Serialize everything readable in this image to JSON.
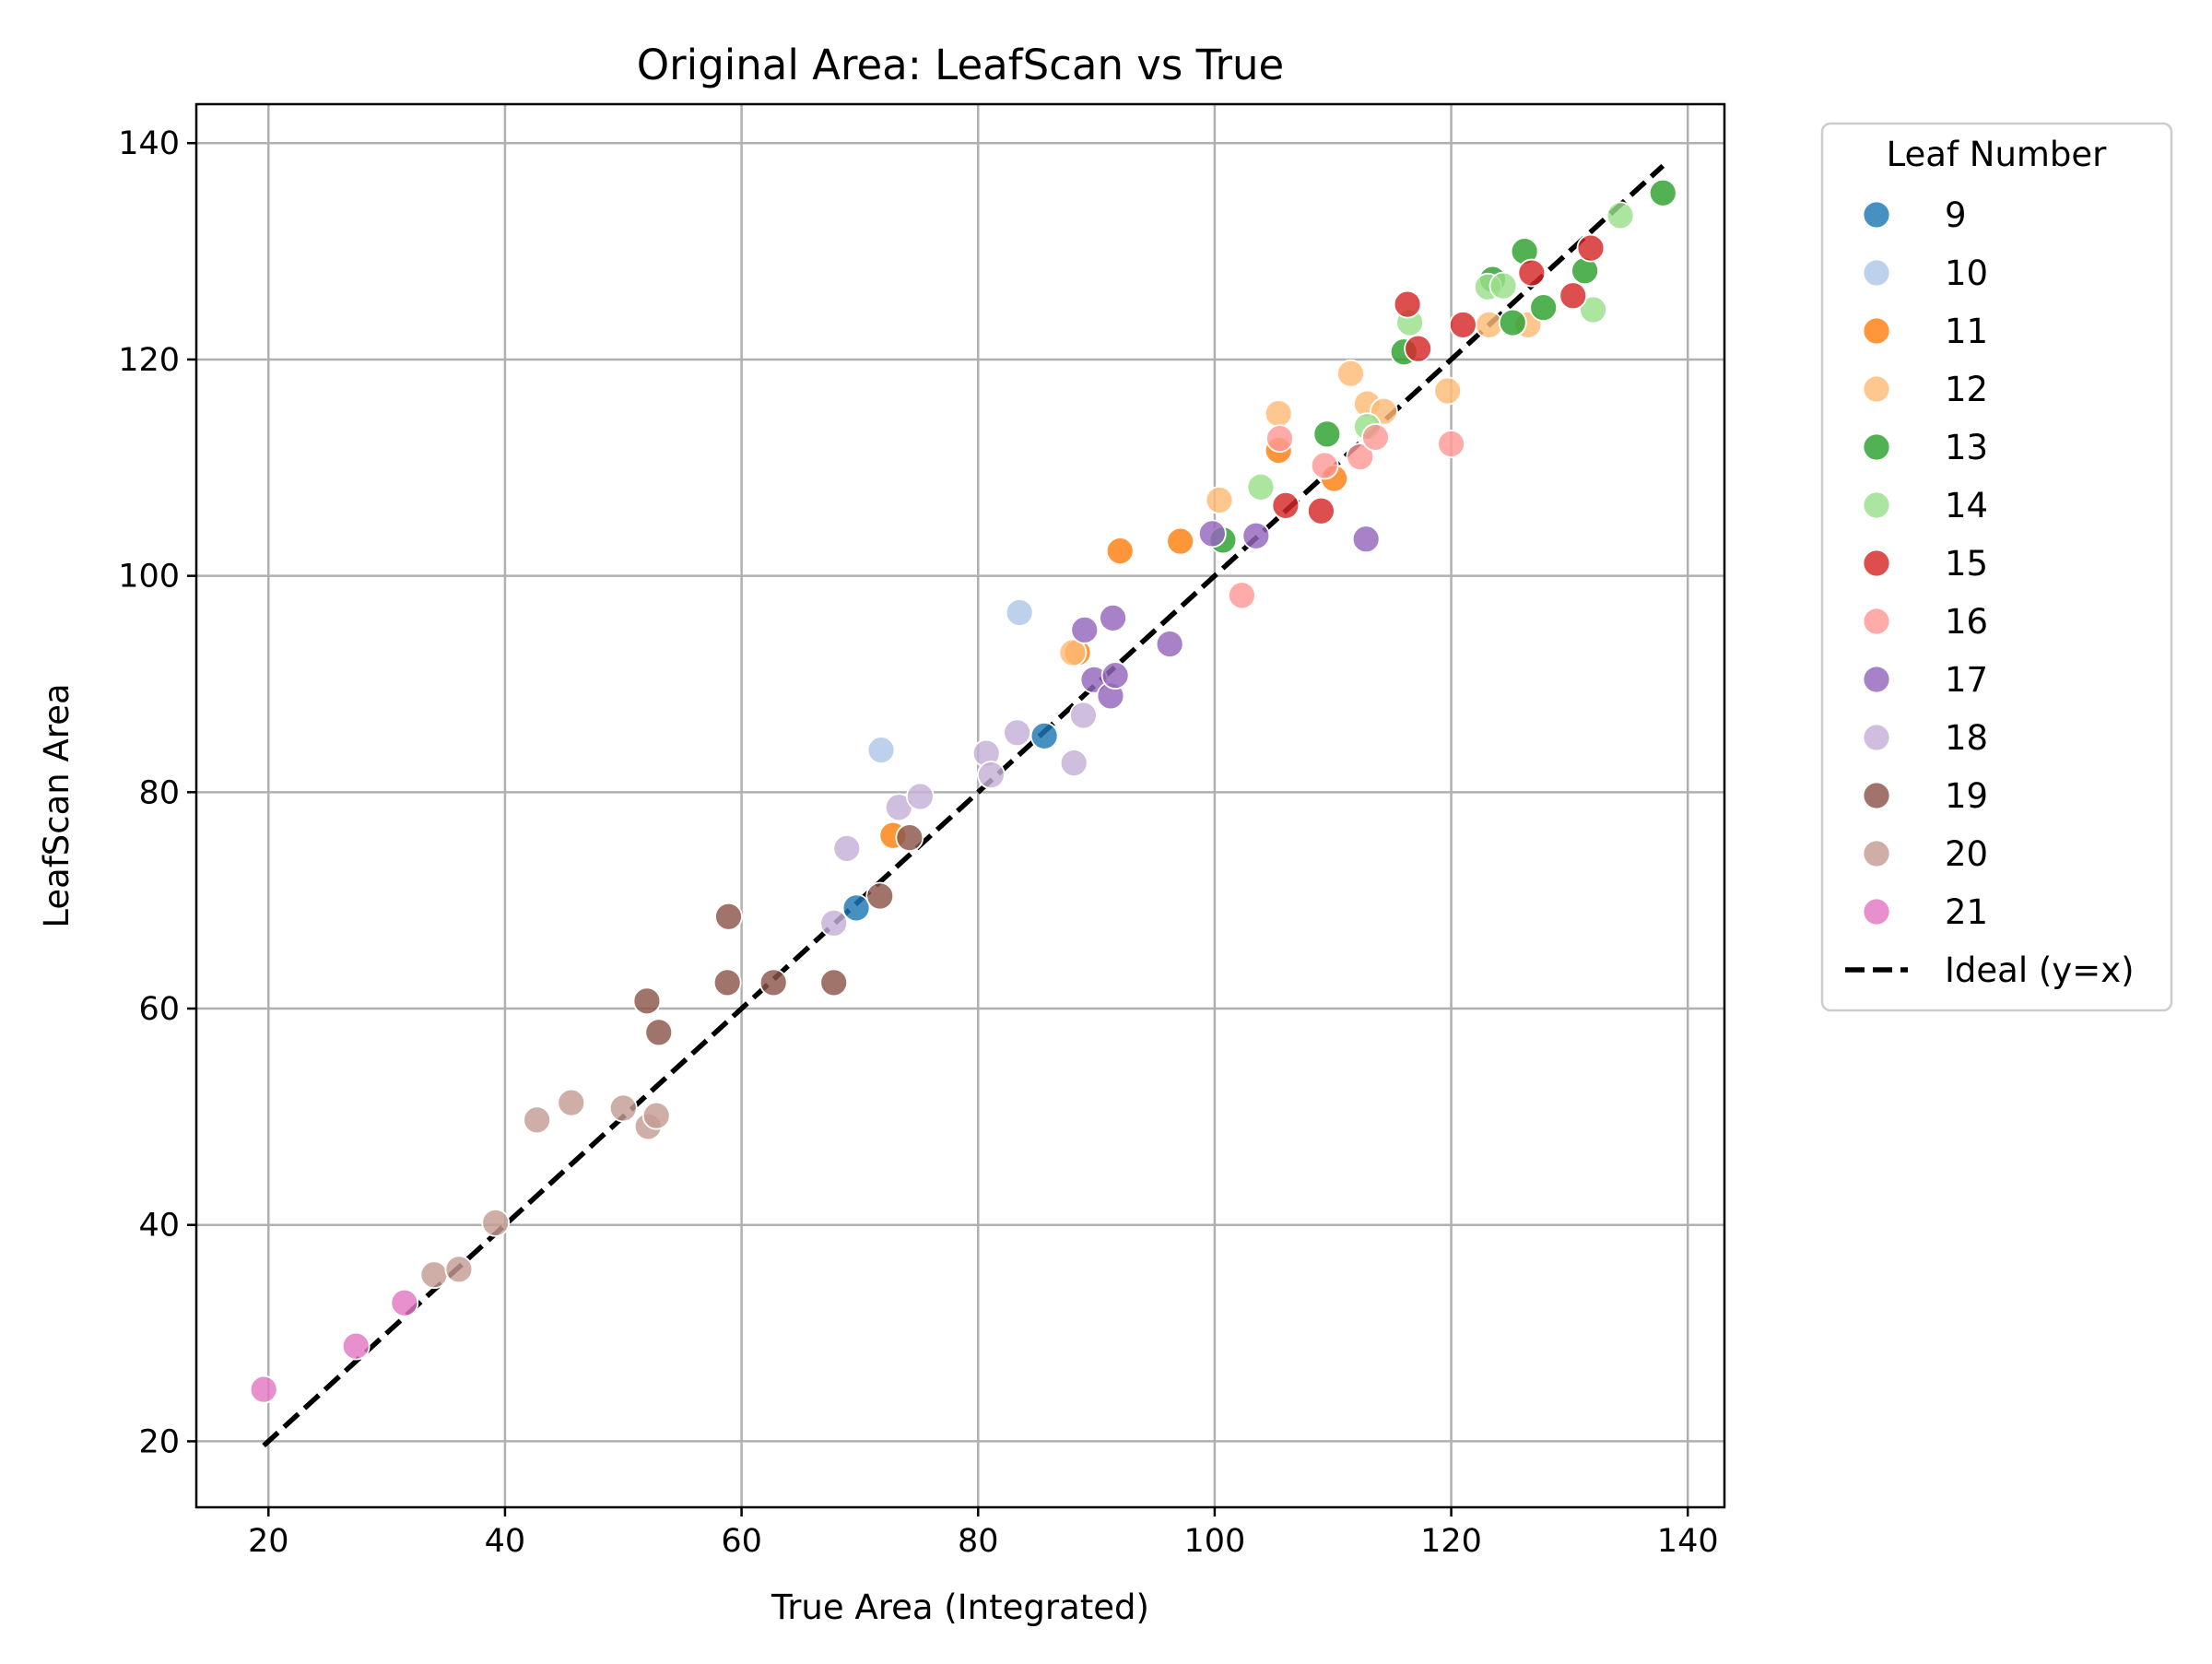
{
  "chart_data": {
    "type": "scatter",
    "title": "Original Area: LeafScan vs True",
    "xlabel": "True Area (Integrated)",
    "ylabel": "LeafScan Area",
    "xlim": [
      13.9,
      143.1
    ],
    "ylim": [
      13.9,
      143.6
    ],
    "x_ticks": [
      20,
      40,
      60,
      80,
      100,
      120,
      140
    ],
    "y_ticks": [
      20,
      40,
      60,
      80,
      100,
      120,
      140
    ],
    "grid": true,
    "legend": {
      "title": "Leaf Number",
      "placement": "outside-right-top"
    },
    "series": [
      {
        "name": "9",
        "color": "#1f77b4",
        "points": [
          [
            69.7,
            69.3
          ],
          [
            85.6,
            85.2
          ]
        ]
      },
      {
        "name": "10",
        "color": "#aec7e8",
        "points": [
          [
            71.8,
            83.9
          ],
          [
            83.5,
            96.6
          ]
        ]
      },
      {
        "name": "11",
        "color": "#ff7f0e",
        "points": [
          [
            72.8,
            76.0
          ],
          [
            88.4,
            92.9
          ],
          [
            92.0,
            102.3
          ],
          [
            97.1,
            103.2
          ],
          [
            105.4,
            111.6
          ],
          [
            110.1,
            109.0
          ]
        ]
      },
      {
        "name": "12",
        "color": "#ffbb78",
        "points": [
          [
            88.0,
            92.9
          ],
          [
            100.4,
            107.0
          ],
          [
            105.4,
            115.0
          ],
          [
            111.5,
            118.7
          ],
          [
            112.9,
            115.9
          ],
          [
            114.3,
            115.2
          ],
          [
            119.7,
            117.1
          ],
          [
            123.2,
            123.2
          ],
          [
            126.5,
            123.2
          ]
        ]
      },
      {
        "name": "13",
        "color": "#2ca02c",
        "points": [
          [
            100.7,
            103.3
          ],
          [
            109.5,
            113.1
          ],
          [
            116.0,
            120.7
          ],
          [
            123.5,
            127.4
          ],
          [
            125.2,
            123.4
          ],
          [
            126.2,
            130.0
          ],
          [
            127.8,
            124.8
          ],
          [
            131.3,
            128.2
          ],
          [
            137.9,
            135.4
          ]
        ]
      },
      {
        "name": "14",
        "color": "#98df8a",
        "points": [
          [
            103.9,
            108.2
          ],
          [
            112.9,
            113.8
          ],
          [
            116.5,
            123.4
          ],
          [
            123.1,
            126.7
          ],
          [
            124.4,
            126.8
          ],
          [
            132.0,
            124.6
          ],
          [
            134.3,
            133.3
          ]
        ]
      },
      {
        "name": "15",
        "color": "#d62728",
        "points": [
          [
            106.0,
            106.5
          ],
          [
            109.0,
            106.0
          ],
          [
            116.3,
            125.1
          ],
          [
            117.2,
            121.0
          ],
          [
            121.0,
            123.2
          ],
          [
            126.8,
            128.0
          ],
          [
            130.3,
            125.9
          ],
          [
            131.8,
            130.3
          ]
        ]
      },
      {
        "name": "16",
        "color": "#ff9896",
        "points": [
          [
            102.3,
            98.2
          ],
          [
            105.5,
            112.7
          ],
          [
            109.3,
            110.2
          ],
          [
            112.3,
            111.0
          ],
          [
            113.6,
            112.8
          ],
          [
            120.0,
            112.2
          ]
        ]
      },
      {
        "name": "17",
        "color": "#9467bd",
        "points": [
          [
            89.0,
            95.0
          ],
          [
            89.8,
            90.4
          ],
          [
            91.2,
            88.9
          ],
          [
            91.4,
            96.1
          ],
          [
            91.6,
            90.8
          ],
          [
            96.2,
            93.7
          ],
          [
            99.8,
            103.9
          ],
          [
            103.5,
            103.7
          ],
          [
            112.8,
            103.4
          ]
        ]
      },
      {
        "name": "18",
        "color": "#c5b0d5",
        "points": [
          [
            67.8,
            67.9
          ],
          [
            68.9,
            74.8
          ],
          [
            73.3,
            78.6
          ],
          [
            75.1,
            79.6
          ],
          [
            80.7,
            83.6
          ],
          [
            81.1,
            81.6
          ],
          [
            83.3,
            85.5
          ],
          [
            88.1,
            82.7
          ],
          [
            88.9,
            87.1
          ]
        ]
      },
      {
        "name": "19",
        "color": "#8c564b",
        "points": [
          [
            52.0,
            60.7
          ],
          [
            53.0,
            57.8
          ],
          [
            58.8,
            62.4
          ],
          [
            58.9,
            68.5
          ],
          [
            62.7,
            62.4
          ],
          [
            67.8,
            62.4
          ],
          [
            71.7,
            70.4
          ],
          [
            74.2,
            75.8
          ]
        ]
      },
      {
        "name": "20",
        "color": "#c49c94",
        "points": [
          [
            34.0,
            35.4
          ],
          [
            36.1,
            35.9
          ],
          [
            39.2,
            40.2
          ],
          [
            42.7,
            49.7
          ],
          [
            45.6,
            51.3
          ],
          [
            50.0,
            50.8
          ],
          [
            52.1,
            49.1
          ],
          [
            52.8,
            50.1
          ]
        ]
      },
      {
        "name": "21",
        "color": "#e377c2",
        "points": [
          [
            19.6,
            24.8
          ],
          [
            27.4,
            28.8
          ],
          [
            31.5,
            32.8
          ]
        ]
      }
    ],
    "reference_line": {
      "name": "Ideal (y=x)",
      "from": [
        19.6,
        19.6
      ],
      "to": [
        137.9,
        137.9
      ],
      "color": "#000000",
      "style": "dashed"
    }
  }
}
